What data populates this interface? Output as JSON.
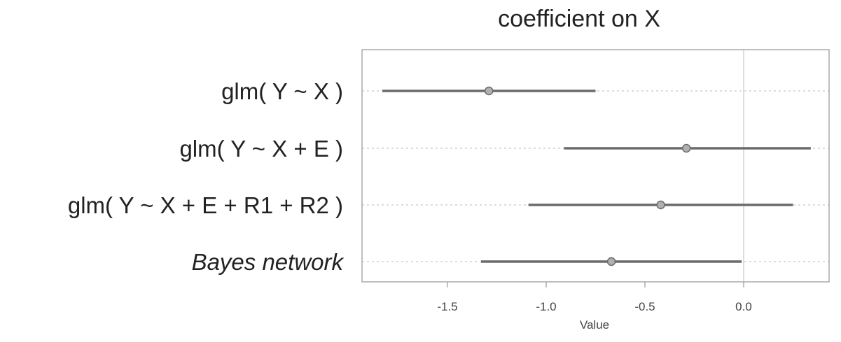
{
  "chart_data": {
    "type": "interval",
    "title": "coefficient on X",
    "xlabel": "Value",
    "ylabel": "",
    "xlim": [
      -1.9,
      0.38
    ],
    "xticks": [
      -1.5,
      -1.0,
      -0.5,
      0.0
    ],
    "xtick_labels": [
      "-1.5",
      "-1.0",
      "-0.5",
      "0.0"
    ],
    "reference_line": 0.0,
    "grid": "dotted horizontal lines per row",
    "categories": [
      "glm( Y ~ X )",
      "glm( Y ~ X + E )",
      "glm( Y ~ X + E + R1 + R2 )",
      "Bayes network"
    ],
    "italic_categories": [
      false,
      false,
      false,
      true
    ],
    "estimates": [
      -1.29,
      -0.29,
      -0.42,
      -0.67
    ],
    "lower": [
      -1.83,
      -0.91,
      -1.09,
      -1.33
    ],
    "upper": [
      -0.75,
      0.34,
      0.25,
      -0.01
    ],
    "colors": {
      "interval": "#6b6b6b",
      "point_fill": "#b0b0b0",
      "frame": "#aaaaaa",
      "zero_line": "#d4d4d4",
      "grid": "#d0d0d0"
    }
  }
}
